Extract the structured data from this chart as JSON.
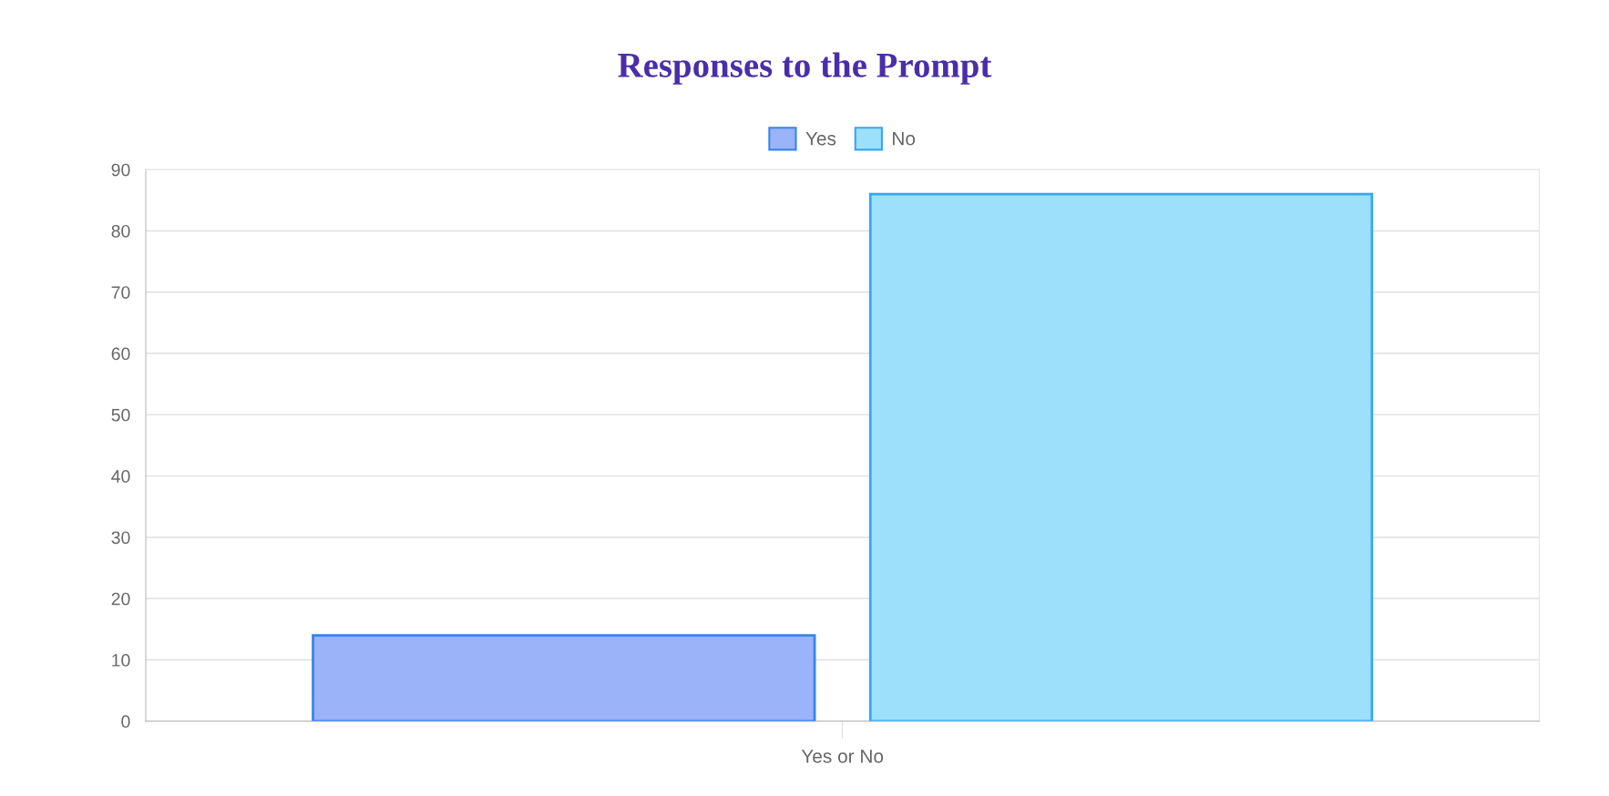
{
  "chart_data": {
    "type": "bar",
    "title": "Responses to the Prompt",
    "categories": [
      "Yes or No"
    ],
    "series": [
      {
        "name": "Yes",
        "color": "#9bb3f9",
        "values": [
          14
        ]
      },
      {
        "name": "No",
        "color": "#9de0fc",
        "values": [
          86
        ]
      }
    ],
    "ylim": [
      0,
      90
    ],
    "yticks": [
      0,
      10,
      20,
      30,
      40,
      50,
      60,
      70,
      80,
      90
    ],
    "grid": "y",
    "legend": "top"
  }
}
